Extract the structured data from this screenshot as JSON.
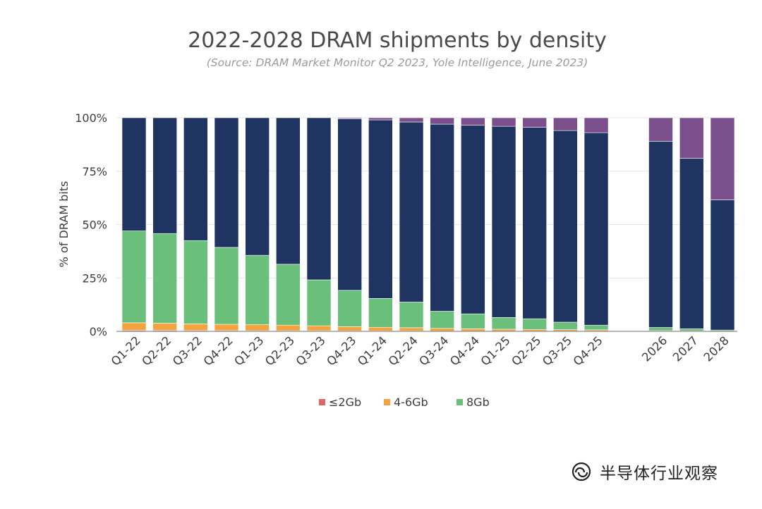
{
  "chart_data": {
    "type": "bar",
    "stacked": true,
    "title": "2022-2028 DRAM shipments by density",
    "subtitle": "(Source: DRAM Market Monitor Q2 2023, Yole Intelligence, June 2023)",
    "xlabel": "",
    "ylabel": "% of DRAM bits",
    "ylim": [
      0,
      100
    ],
    "y_ticks": [
      "0%",
      "25%",
      "50%",
      "75%",
      "100%"
    ],
    "grid": true,
    "legend_position": "bottom",
    "categories": [
      "Q1-22",
      "Q2-22",
      "Q3-22",
      "Q4-22",
      "Q1-23",
      "Q2-23",
      "Q3-23",
      "Q4-23",
      "Q1-24",
      "Q2-24",
      "Q3-24",
      "Q4-24",
      "Q1-25",
      "Q2-25",
      "Q3-25",
      "Q4-25",
      "2026",
      "2027",
      "2028"
    ],
    "series": [
      {
        "name": "≤2Gb",
        "color": "#e06666",
        "values": [
          0.5,
          0.5,
          0.4,
          0.4,
          0.3,
          0.3,
          0.3,
          0.2,
          0.2,
          0.2,
          0.1,
          0.1,
          0.1,
          0.1,
          0.1,
          0.1,
          0,
          0,
          0
        ]
      },
      {
        "name": "4-6Gb",
        "color": "#f4a340",
        "values": [
          3.5,
          3.3,
          3.1,
          2.9,
          2.8,
          2.6,
          2.3,
          2.0,
          1.7,
          1.5,
          1.3,
          1.1,
          0.9,
          0.8,
          0.7,
          0.6,
          0.3,
          0.2,
          0.1
        ]
      },
      {
        "name": "8Gb",
        "color": "#6abf7b",
        "values": [
          43,
          42,
          39,
          36,
          32.5,
          28.5,
          21.5,
          17,
          13.5,
          12,
          8,
          7,
          5.5,
          5,
          3.5,
          2.2,
          1.5,
          1,
          0.5
        ]
      },
      {
        "color": "#1f3461",
        "values": [
          53,
          54.2,
          57.5,
          60.7,
          64.4,
          68.6,
          75.9,
          80.3,
          83.6,
          84.3,
          87.6,
          88.3,
          89.5,
          89.6,
          89.7,
          90.1,
          87.2,
          79.8,
          61
        ]
      },
      {
        "color": "#7b4f8b",
        "values": [
          0,
          0,
          0,
          0,
          0,
          0,
          0,
          0.5,
          1,
          2,
          3,
          3.5,
          4,
          4.5,
          6,
          7,
          11,
          19,
          38.4
        ]
      }
    ]
  },
  "watermark": {
    "text": "半导体行业观察",
    "icon": "wechat-official-account-icon"
  }
}
